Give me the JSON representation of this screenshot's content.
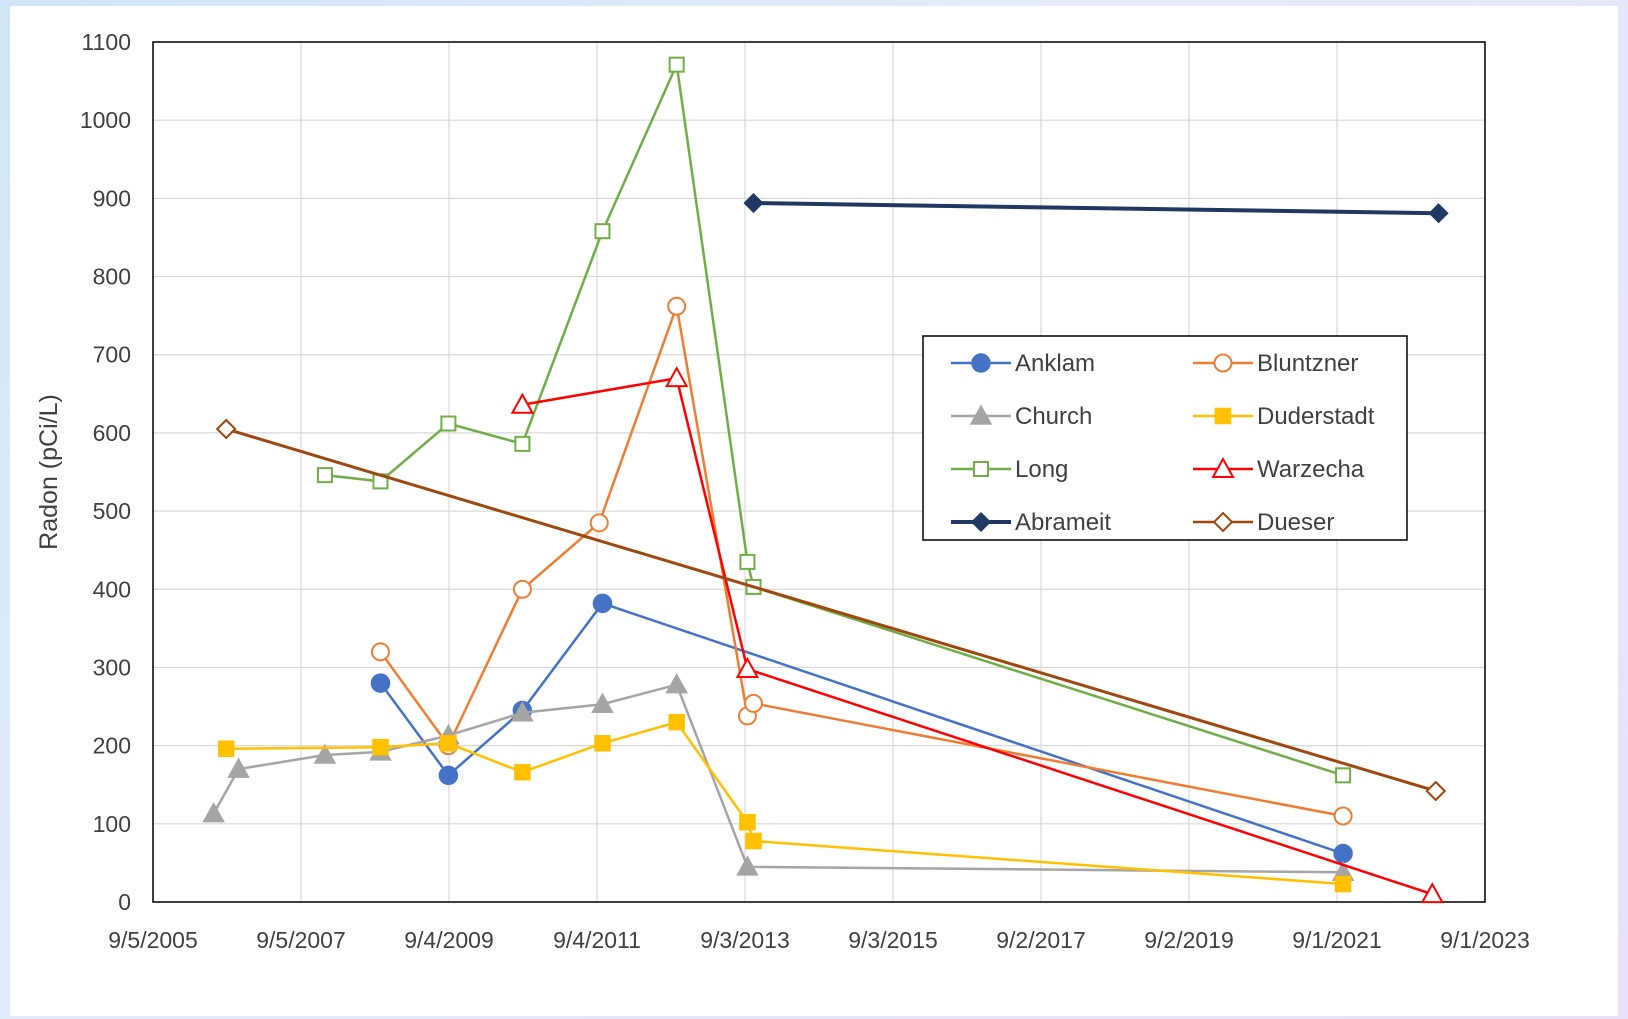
{
  "chart_data": {
    "type": "line",
    "title": "",
    "xlabel": "",
    "ylabel": "Radon (pCi/L)",
    "xlim": [
      "2005-09-05",
      "2023-09-01"
    ],
    "ylim": [
      0,
      1100
    ],
    "x_ticks": [
      "9/5/2005",
      "9/5/2007",
      "9/4/2009",
      "9/4/2011",
      "9/3/2013",
      "9/3/2015",
      "9/2/2017",
      "9/2/2019",
      "9/1/2021",
      "9/1/2023"
    ],
    "x_tick_dates": [
      "2005-09-05",
      "2007-09-05",
      "2009-09-04",
      "2011-09-04",
      "2013-09-03",
      "2015-09-03",
      "2017-09-02",
      "2019-09-02",
      "2021-09-01",
      "2023-09-01"
    ],
    "y_ticks": [
      "0",
      "100",
      "200",
      "300",
      "400",
      "500",
      "600",
      "700",
      "800",
      "900",
      "1000",
      "1100"
    ],
    "grid": true,
    "legend_position": "center-right",
    "series": [
      {
        "name": "Anklam",
        "color": "#4472C4",
        "marker": "circle-filled",
        "points": [
          [
            "2008-10-01",
            280
          ],
          [
            "2009-09-01",
            162
          ],
          [
            "2010-09-01",
            245
          ],
          [
            "2011-10-01",
            382
          ],
          [
            "2021-10-01",
            62
          ]
        ]
      },
      {
        "name": "Bluntzner",
        "color": "#ED7D31",
        "marker": "circle-open",
        "points": [
          [
            "2008-10-01",
            320
          ],
          [
            "2009-09-01",
            200
          ],
          [
            "2010-09-01",
            400
          ],
          [
            "2011-09-15",
            485
          ],
          [
            "2012-10-01",
            762
          ],
          [
            "2013-09-15",
            238
          ],
          [
            "2013-10-15",
            254
          ],
          [
            "2021-10-01",
            110
          ]
        ]
      },
      {
        "name": "Church",
        "color": "#A5A5A5",
        "marker": "triangle-filled",
        "points": [
          [
            "2006-07-01",
            113
          ],
          [
            "2006-11-01",
            170
          ],
          [
            "2008-01-01",
            188
          ],
          [
            "2008-10-01",
            192
          ],
          [
            "2009-09-01",
            213
          ],
          [
            "2010-09-01",
            242
          ],
          [
            "2011-10-01",
            253
          ],
          [
            "2012-10-01",
            278
          ],
          [
            "2013-09-15",
            45
          ],
          [
            "2021-10-01",
            38
          ]
        ]
      },
      {
        "name": "Duderstadt",
        "color": "#FFC000",
        "marker": "square-filled",
        "points": [
          [
            "2006-09-01",
            196
          ],
          [
            "2008-10-01",
            198
          ],
          [
            "2009-09-01",
            203
          ],
          [
            "2010-09-01",
            166
          ],
          [
            "2011-10-01",
            203
          ],
          [
            "2012-10-01",
            230
          ],
          [
            "2013-09-15",
            102
          ],
          [
            "2013-10-15",
            78
          ],
          [
            "2021-10-01",
            23
          ]
        ]
      },
      {
        "name": "Long",
        "color": "#70AD47",
        "marker": "square-open",
        "points": [
          [
            "2008-01-01",
            546
          ],
          [
            "2008-10-01",
            538
          ],
          [
            "2009-09-01",
            612
          ],
          [
            "2010-09-01",
            586
          ],
          [
            "2011-10-01",
            858
          ],
          [
            "2012-10-01",
            1071
          ],
          [
            "2013-09-15",
            435
          ],
          [
            "2013-10-15",
            403
          ],
          [
            "2021-10-01",
            162
          ]
        ]
      },
      {
        "name": "Warzecha",
        "color": "#FF0000",
        "marker": "triangle-open",
        "points": [
          [
            "2010-09-01",
            636
          ],
          [
            "2012-10-01",
            670
          ],
          [
            "2013-09-15",
            298
          ],
          [
            "2022-12-15",
            10
          ]
        ]
      },
      {
        "name": "Abrameit",
        "color": "#203864",
        "marker": "diamond-filled",
        "points": [
          [
            "2013-10-15",
            894
          ],
          [
            "2023-01-15",
            881
          ]
        ]
      },
      {
        "name": "Dueser",
        "color": "#9E480E",
        "marker": "diamond-open",
        "points": [
          [
            "2006-09-01",
            605
          ],
          [
            "2023-01-01",
            142
          ]
        ]
      }
    ]
  }
}
